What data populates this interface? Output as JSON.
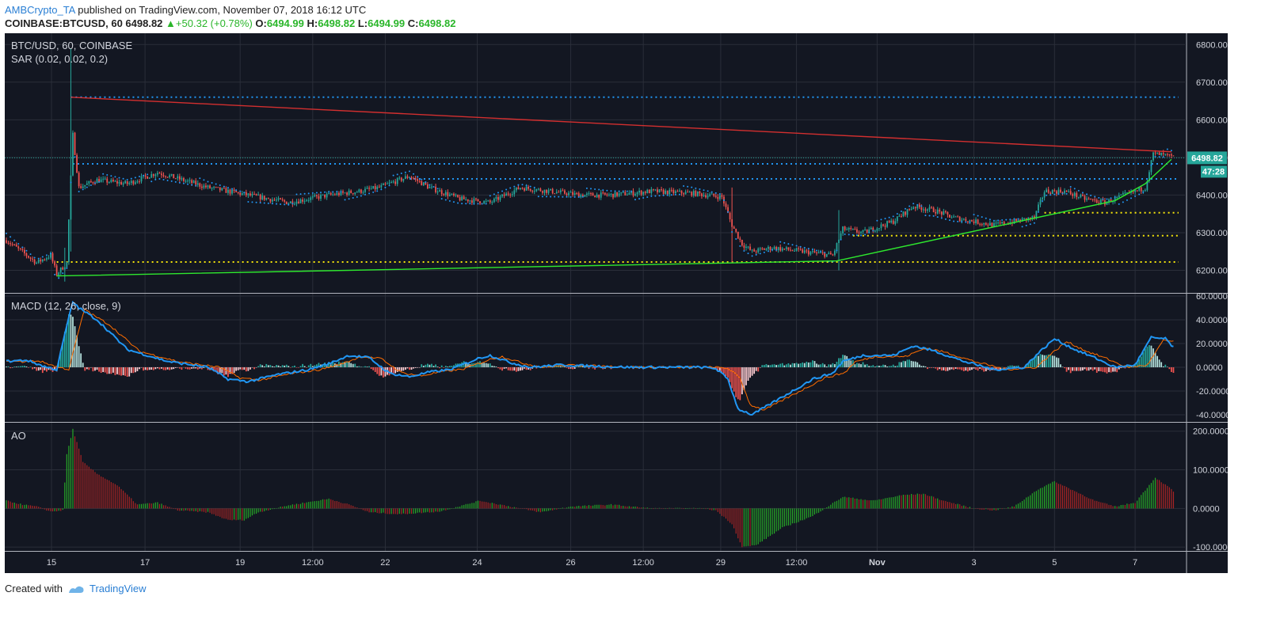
{
  "header": {
    "author": "AMBCrypto_TA",
    "published": " published on TradingView.com, November 07, 2018 16:12 UTC"
  },
  "quote": {
    "symbol": "COINBASE:BTCUSD, 60",
    "last": "6498.82",
    "change": "+50.32 (+0.78%)",
    "o_label": "O:",
    "o": "6494.99",
    "h_label": "H:",
    "h": "6498.82",
    "l_label": "L:",
    "l": "6494.99",
    "c_label": "C:",
    "c": "6498.82",
    "up_arrow": "▲"
  },
  "footer": {
    "created_with": "Created with",
    "brand": "TradingView"
  },
  "colors": {
    "background": "#131722",
    "up_candle": "#26a69a",
    "down_candle": "#ef5350",
    "sar": "#2196f3",
    "macd": "#2196f3",
    "signal": "#ff6d00",
    "resistance_trendline": "#d32f2f",
    "support_trendline": "#2ee82e",
    "blue_levels": "#2196f3",
    "yellow_levels": "#f5e60a",
    "price_tag": "#26a69a",
    "ao_up": "#26a627",
    "ao_down": "#a82424"
  },
  "chart_data": [
    {
      "type": "candlestick",
      "title": "BTC/USD, 60, COINBASE",
      "indicator": "SAR (0.02, 0.02, 0.2)",
      "x_ticks": [
        "15",
        "17",
        "19",
        "12:00",
        "22",
        "24",
        "26",
        "12:00",
        "29",
        "12:00",
        "Nov",
        "3",
        "5",
        "7"
      ],
      "y_ticks": [
        "6800.00",
        "6700.00",
        "6600.00",
        "6500.00",
        "6400.00",
        "6300.00",
        "6200.00"
      ],
      "ylim": [
        6140,
        6830
      ],
      "last_price": "6498.82",
      "countdown": "47:28",
      "anchors": [
        [
          0,
          6280
        ],
        [
          10,
          6240
        ],
        [
          15,
          6220
        ],
        [
          22,
          6240
        ],
        [
          25,
          6190
        ],
        [
          30,
          6220
        ],
        [
          33,
          6560
        ],
        [
          36,
          6420
        ],
        [
          45,
          6440
        ],
        [
          60,
          6430
        ],
        [
          75,
          6460
        ],
        [
          100,
          6420
        ],
        [
          120,
          6400
        ],
        [
          140,
          6380
        ],
        [
          160,
          6400
        ],
        [
          175,
          6410
        ],
        [
          185,
          6420
        ],
        [
          200,
          6450
        ],
        [
          210,
          6420
        ],
        [
          225,
          6390
        ],
        [
          240,
          6380
        ],
        [
          255,
          6420
        ],
        [
          270,
          6410
        ],
        [
          285,
          6400
        ],
        [
          300,
          6400
        ],
        [
          320,
          6410
        ],
        [
          340,
          6405
        ],
        [
          355,
          6395
        ],
        [
          360,
          6320
        ],
        [
          365,
          6270
        ],
        [
          370,
          6250
        ],
        [
          380,
          6260
        ],
        [
          395,
          6250
        ],
        [
          410,
          6240
        ],
        [
          415,
          6310
        ],
        [
          425,
          6300
        ],
        [
          440,
          6330
        ],
        [
          450,
          6370
        ],
        [
          460,
          6360
        ],
        [
          470,
          6340
        ],
        [
          480,
          6330
        ],
        [
          490,
          6320
        ],
        [
          500,
          6330
        ],
        [
          510,
          6340
        ],
        [
          515,
          6410
        ],
        [
          525,
          6410
        ],
        [
          535,
          6390
        ],
        [
          545,
          6380
        ],
        [
          555,
          6400
        ],
        [
          565,
          6420
        ],
        [
          569,
          6510
        ],
        [
          575,
          6505
        ],
        [
          580,
          6498.82
        ]
      ],
      "spikes": [
        [
          32,
          6790,
          6250
        ],
        [
          29,
          6260,
          6170
        ],
        [
          360,
          6420,
          6220
        ],
        [
          413,
          6360,
          6200
        ]
      ],
      "candle_count": 580,
      "horizontal_levels": [
        {
          "value": 6660,
          "color": "blue"
        },
        {
          "value": 6483,
          "color": "blue"
        },
        {
          "value": 6443,
          "color": "blue"
        },
        {
          "value": 6353,
          "color": "yellow"
        },
        {
          "value": 6292,
          "color": "yellow"
        },
        {
          "value": 6222,
          "color": "yellow"
        }
      ],
      "trendlines": [
        {
          "name": "resistance",
          "from": [
            32,
            6660
          ],
          "to": [
            578,
            6515
          ]
        },
        {
          "name": "support",
          "points": [
            [
              25,
              6185
            ],
            [
              412,
              6225
            ],
            [
              550,
              6385
            ],
            [
              565,
              6430
            ],
            [
              578,
              6495
            ]
          ]
        }
      ]
    },
    {
      "type": "line",
      "title": "MACD (12, 26, close, 9)",
      "y_ticks": [
        "60.0000",
        "40.0000",
        "20.0000",
        "0.0000",
        "-20.0000",
        "-40.0000"
      ],
      "ylim": [
        -46,
        62
      ],
      "macd_anchors": [
        [
          0,
          5
        ],
        [
          10,
          6
        ],
        [
          20,
          0
        ],
        [
          25,
          -2
        ],
        [
          30,
          35
        ],
        [
          33,
          55
        ],
        [
          36,
          50
        ],
        [
          45,
          40
        ],
        [
          60,
          15
        ],
        [
          80,
          5
        ],
        [
          100,
          0
        ],
        [
          110,
          -10
        ],
        [
          120,
          -12
        ],
        [
          135,
          -6
        ],
        [
          150,
          -2
        ],
        [
          160,
          3
        ],
        [
          170,
          10
        ],
        [
          180,
          8
        ],
        [
          190,
          -5
        ],
        [
          200,
          -8
        ],
        [
          210,
          -4
        ],
        [
          220,
          -2
        ],
        [
          235,
          8
        ],
        [
          240,
          10
        ],
        [
          250,
          4
        ],
        [
          260,
          0
        ],
        [
          275,
          2
        ],
        [
          290,
          1
        ],
        [
          310,
          0
        ],
        [
          325,
          0
        ],
        [
          345,
          0
        ],
        [
          352,
          -1
        ],
        [
          358,
          -10
        ],
        [
          363,
          -35
        ],
        [
          370,
          -40
        ],
        [
          385,
          -25
        ],
        [
          400,
          -10
        ],
        [
          410,
          -5
        ],
        [
          415,
          5
        ],
        [
          425,
          10
        ],
        [
          440,
          10
        ],
        [
          450,
          18
        ],
        [
          460,
          14
        ],
        [
          475,
          5
        ],
        [
          490,
          -2
        ],
        [
          505,
          0
        ],
        [
          512,
          12
        ],
        [
          520,
          24
        ],
        [
          530,
          15
        ],
        [
          540,
          8
        ],
        [
          550,
          0
        ],
        [
          560,
          2
        ],
        [
          568,
          25
        ],
        [
          575,
          24
        ],
        [
          580,
          15
        ]
      ],
      "signal_lag": 6
    },
    {
      "type": "bar",
      "title": "AO",
      "y_ticks": [
        "200.0000",
        "100.0000",
        "0.0000",
        "-100.0000"
      ],
      "ylim": [
        -110,
        222
      ],
      "ao_anchors": [
        [
          0,
          20
        ],
        [
          8,
          10
        ],
        [
          15,
          5
        ],
        [
          22,
          -8
        ],
        [
          28,
          -5
        ],
        [
          30,
          140
        ],
        [
          33,
          205
        ],
        [
          38,
          120
        ],
        [
          45,
          90
        ],
        [
          55,
          60
        ],
        [
          65,
          10
        ],
        [
          75,
          15
        ],
        [
          85,
          -5
        ],
        [
          100,
          -10
        ],
        [
          110,
          -30
        ],
        [
          118,
          -30
        ],
        [
          125,
          -10
        ],
        [
          140,
          8
        ],
        [
          160,
          25
        ],
        [
          170,
          10
        ],
        [
          180,
          -10
        ],
        [
          195,
          -15
        ],
        [
          215,
          -8
        ],
        [
          235,
          20
        ],
        [
          245,
          10
        ],
        [
          265,
          -10
        ],
        [
          280,
          5
        ],
        [
          300,
          10
        ],
        [
          320,
          0
        ],
        [
          345,
          0
        ],
        [
          352,
          -5
        ],
        [
          360,
          -40
        ],
        [
          365,
          -100
        ],
        [
          372,
          -95
        ],
        [
          385,
          -50
        ],
        [
          400,
          -20
        ],
        [
          415,
          30
        ],
        [
          430,
          20
        ],
        [
          445,
          35
        ],
        [
          455,
          38
        ],
        [
          465,
          20
        ],
        [
          480,
          0
        ],
        [
          490,
          -5
        ],
        [
          500,
          5
        ],
        [
          512,
          50
        ],
        [
          520,
          70
        ],
        [
          530,
          45
        ],
        [
          540,
          20
        ],
        [
          550,
          5
        ],
        [
          560,
          15
        ],
        [
          570,
          80
        ],
        [
          578,
          50
        ],
        [
          580,
          35
        ]
      ]
    }
  ]
}
